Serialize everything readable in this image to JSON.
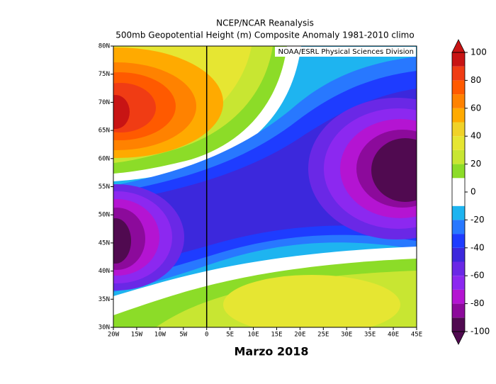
{
  "map": {
    "title": "NCEP/NCAR Reanalysis",
    "subtitle": "500mb Geopotential Height (m) Composite Anomaly 1981-2010 climo",
    "credit": "NOAA/ESRL Physical Sciences Division",
    "caption": "Marzo 2018",
    "lonlim": [
      -20,
      45
    ],
    "latlim": [
      30,
      80
    ],
    "xticks": [
      {
        "value": -20,
        "label": "20W"
      },
      {
        "value": -15,
        "label": "15W"
      },
      {
        "value": -10,
        "label": "10W"
      },
      {
        "value": -5,
        "label": "5W"
      },
      0,
      {
        "value": 5,
        "label": "5E"
      },
      {
        "value": 10,
        "label": "10E"
      },
      {
        "value": 15,
        "label": "15E"
      },
      {
        "value": 20,
        "label": "20E"
      },
      {
        "value": 25,
        "label": "25E"
      },
      {
        "value": 30,
        "label": "30E"
      },
      {
        "value": 35,
        "label": "35E"
      },
      {
        "value": 40,
        "label": "40E"
      },
      {
        "value": 45,
        "label": "45E"
      }
    ],
    "yticks": [
      {
        "value": 30,
        "label": "30N"
      },
      {
        "value": 35,
        "label": "35N"
      },
      {
        "value": 40,
        "label": "40N"
      },
      {
        "value": 45,
        "label": "45N"
      },
      {
        "value": 50,
        "label": "50N"
      },
      {
        "value": 55,
        "label": "55N"
      },
      {
        "value": 60,
        "label": "60N"
      },
      {
        "value": 65,
        "label": "65N"
      },
      {
        "value": 70,
        "label": "70N"
      },
      {
        "value": 75,
        "label": "75N"
      },
      {
        "value": 80,
        "label": "80N"
      }
    ]
  },
  "colorbar": {
    "lim": [
      -100,
      100
    ],
    "ticks": [
      100,
      80,
      60,
      40,
      20,
      0,
      -20,
      -40,
      -60,
      -80,
      -100
    ],
    "colors": [
      "#500a50",
      "#8c0a9b",
      "#b414d2",
      "#8c28f0",
      "#6a28e6",
      "#3c28dc",
      "#1e3cff",
      "#2878ff",
      "#1eb4f0",
      "#ffffff",
      "#ffffff",
      "#8cdc28",
      "#c8e632",
      "#e6e632",
      "#f0d228",
      "#ffaa00",
      "#ff8200",
      "#ff5a00",
      "#f03c14",
      "#c81414"
    ]
  }
}
